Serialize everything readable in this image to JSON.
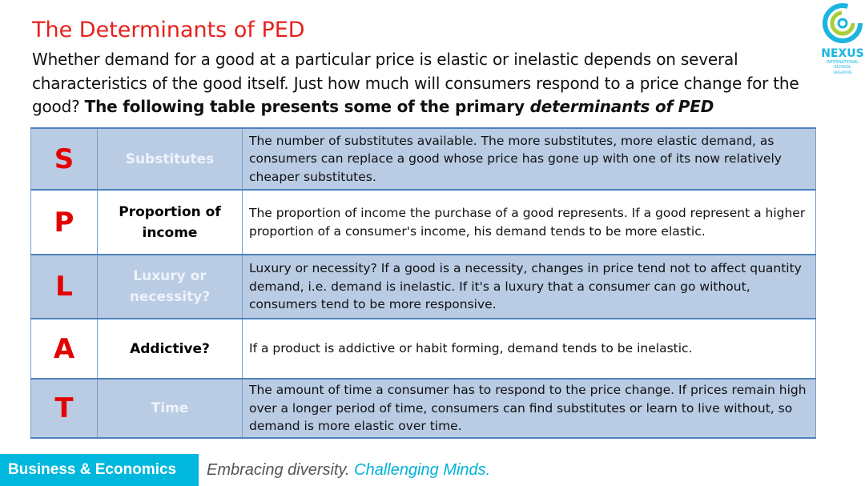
{
  "title": "The Determinants of PED",
  "intro": {
    "text": "Whether demand for a good at a particular price is elastic or inelastic depends on several characteristics of the good itself. Just how much will consumers respond to a price change for the good? ",
    "bold": "The following table presents some of the primary ",
    "bold_italic": "determinants of PED"
  },
  "logo": {
    "name": "NEXUS",
    "sub1": "INTERNATIONAL",
    "sub2": "SCHOOL",
    "sub3": "SINGAPORE"
  },
  "rows": [
    {
      "letter": "S",
      "name": "Substitutes",
      "desc": "The number of substitutes available. The more substitutes, more elastic demand, as consumers can replace a good whose price has gone up with one of its now relatively cheaper substitutes."
    },
    {
      "letter": "P",
      "name": "Proportion of income",
      "desc": "The proportion of income the purchase of a good represents. If a good represent a higher proportion of a consumer's income, his demand tends to be more elastic."
    },
    {
      "letter": "L",
      "name": "Luxury or necessity?",
      "desc": "Luxury or necessity? If a good is a necessity, changes in price tend not to affect quantity demand, i.e. demand is inelastic. If it's a luxury that a consumer can go without, consumers tend to be more responsive."
    },
    {
      "letter": "A",
      "name": "Addictive?",
      "desc": "If a product is addictive or habit forming, demand tends to be inelastic."
    },
    {
      "letter": "T",
      "name": "Time",
      "desc": "The amount of time a consumer has to respond to the price change. If prices remain high over a longer period of time, consumers can find substitutes or learn to live without, so demand is more elastic over time."
    }
  ],
  "footer": {
    "dept": "Business & Economics",
    "tag1": "Embracing diversity.",
    "tag2": "Challenging Minds."
  },
  "colors": {
    "accent": "#e8201c",
    "row_blue": "#b9cce4",
    "footer": "#00b7dd"
  }
}
